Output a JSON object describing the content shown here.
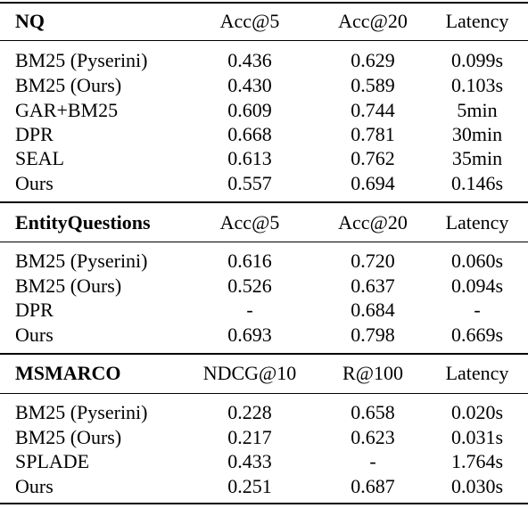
{
  "sections": [
    {
      "title": "NQ",
      "columns": [
        "Acc@5",
        "Acc@20",
        "Latency"
      ],
      "rows": [
        [
          "BM25 (Pyserini)",
          "0.436",
          "0.629",
          "0.099s"
        ],
        [
          "BM25 (Ours)",
          "0.430",
          "0.589",
          "0.103s"
        ],
        [
          "GAR+BM25",
          "0.609",
          "0.744",
          "5min"
        ],
        [
          "DPR",
          "0.668",
          "0.781",
          "30min"
        ],
        [
          "SEAL",
          "0.613",
          "0.762",
          "35min"
        ],
        [
          "Ours",
          "0.557",
          "0.694",
          "0.146s"
        ]
      ]
    },
    {
      "title": "EntityQuestions",
      "columns": [
        "Acc@5",
        "Acc@20",
        "Latency"
      ],
      "rows": [
        [
          "BM25 (Pyserini)",
          "0.616",
          "0.720",
          "0.060s"
        ],
        [
          "BM25 (Ours)",
          "0.526",
          "0.637",
          "0.094s"
        ],
        [
          "DPR",
          "-",
          "0.684",
          "-"
        ],
        [
          "Ours",
          "0.693",
          "0.798",
          "0.669s"
        ]
      ]
    },
    {
      "title": "MSMARCO",
      "columns": [
        "NDCG@10",
        "R@100",
        "Latency"
      ],
      "rows": [
        [
          "BM25 (Pyserini)",
          "0.228",
          "0.658",
          "0.020s"
        ],
        [
          "BM25 (Ours)",
          "0.217",
          "0.623",
          "0.031s"
        ],
        [
          "SPLADE",
          "0.433",
          "-",
          "1.764s"
        ],
        [
          "Ours",
          "0.251",
          "0.687",
          "0.030s"
        ]
      ]
    }
  ]
}
